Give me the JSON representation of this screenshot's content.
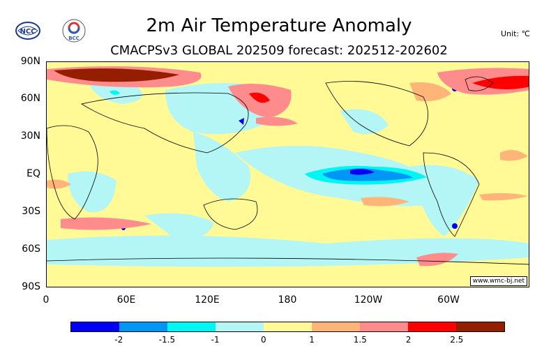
{
  "header": {
    "title": "2m Air Temperature Anomaly",
    "subtitle": "CMACPSv3 GLOBAL 202509 forecast: 202512-202602",
    "unit": "Unit: ℃"
  },
  "logos": [
    {
      "icon": "wmo-ncc-logo",
      "text": "NCC"
    },
    {
      "icon": "bcc-logo",
      "text": "BCC"
    }
  ],
  "map": {
    "lat_labels": [
      "90N",
      "60N",
      "30N",
      "EQ",
      "30S",
      "60S",
      "90S"
    ],
    "lon_labels": [
      "0",
      "60E",
      "120E",
      "180",
      "120W",
      "60W"
    ],
    "credit": "www.wmc-bj.net",
    "background_color": "#fffa96"
  },
  "colorbar": {
    "colors": [
      "#0000f5",
      "#0096f5",
      "#00f5f5",
      "#b4f5f5",
      "#fffa96",
      "#ffb478",
      "#ff8c8c",
      "#ff0000",
      "#961e00"
    ],
    "labels": [
      "-2",
      "-1.5",
      "-1",
      "0",
      "1",
      "1.5",
      "2",
      "2.5"
    ]
  }
}
